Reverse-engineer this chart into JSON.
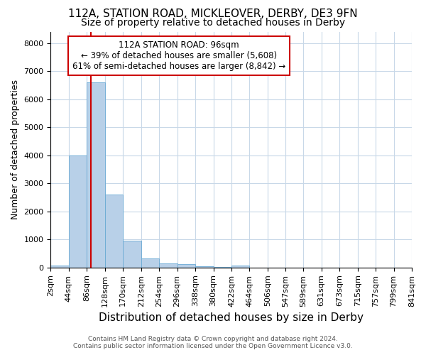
{
  "title1": "112A, STATION ROAD, MICKLEOVER, DERBY, DE3 9FN",
  "title2": "Size of property relative to detached houses in Derby",
  "xlabel": "Distribution of detached houses by size in Derby",
  "ylabel": "Number of detached properties",
  "footer1": "Contains HM Land Registry data © Crown copyright and database right 2024.",
  "footer2": "Contains public sector information licensed under the Open Government Licence v3.0.",
  "bin_edges": [
    2,
    44,
    86,
    128,
    170,
    212,
    254,
    296,
    338,
    380,
    422,
    464,
    506,
    547,
    589,
    631,
    673,
    715,
    757,
    799,
    841
  ],
  "bar_heights": [
    80,
    4000,
    6600,
    2600,
    950,
    320,
    150,
    120,
    50,
    30,
    80,
    0,
    0,
    0,
    0,
    0,
    0,
    0,
    0,
    0
  ],
  "bar_color": "#b8d0e8",
  "bar_edgecolor": "#6aaad4",
  "property_size": 96,
  "red_line_color": "#cc0000",
  "annotation_line1": "112A STATION ROAD: 96sqm",
  "annotation_line2": "← 39% of detached houses are smaller (5,608)",
  "annotation_line3": "61% of semi-detached houses are larger (8,842) →",
  "annotation_box_color": "#cc0000",
  "ylim": [
    0,
    8400
  ],
  "yticks": [
    0,
    1000,
    2000,
    3000,
    4000,
    5000,
    6000,
    7000,
    8000
  ],
  "background_color": "#ffffff",
  "grid_color": "#c8d8e8",
  "title1_fontsize": 11,
  "title2_fontsize": 10,
  "xlabel_fontsize": 11,
  "ylabel_fontsize": 9,
  "tick_fontsize": 8,
  "footer_fontsize": 6.5,
  "annotation_fontsize": 8.5
}
